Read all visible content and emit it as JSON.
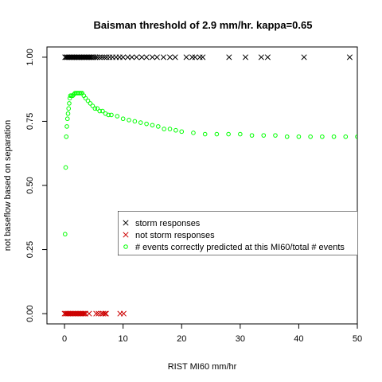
{
  "chart_data": {
    "type": "scatter",
    "title": "Baisman threshold of 2.9 mm/hr. kappa=0.65",
    "xlabel": "RIST MI60 mm/hr",
    "ylabel": "not baseflow based on separation",
    "xlim": [
      -3,
      50
    ],
    "ylim": [
      -0.04,
      1.04
    ],
    "x_ticks": [
      "0",
      "10",
      "20",
      "30",
      "40",
      "50"
    ],
    "y_ticks": [
      "0.00",
      "0.25",
      "0.50",
      "0.75",
      "1.00"
    ],
    "legend_position": "center-right",
    "grid": false,
    "series": [
      {
        "name": "storm responses",
        "marker": "x",
        "color": "#000000",
        "x": [
          0.1,
          0.3,
          0.5,
          0.7,
          0.9,
          1.1,
          1.3,
          1.5,
          1.7,
          1.9,
          2.1,
          2.3,
          2.5,
          2.7,
          2.9,
          3.1,
          3.3,
          3.5,
          3.7,
          3.9,
          4.1,
          4.3,
          4.5,
          4.7,
          5.0,
          5.3,
          5.6,
          6.0,
          6.4,
          6.8,
          7.2,
          7.7,
          8.2,
          8.8,
          9.4,
          10.0,
          10.8,
          11.5,
          12.3,
          13.2,
          14.0,
          15.0,
          15.8,
          16.9,
          18.0,
          18.9,
          20.8,
          21.8,
          22.3,
          23.1,
          23.6,
          28.1,
          30.9,
          33.6,
          34.7,
          40.9,
          48.7
        ],
        "y": 1.0
      },
      {
        "name": "not storm responses",
        "marker": "x",
        "color": "#cc0000",
        "x": [
          0.0,
          0.2,
          0.4,
          0.6,
          0.8,
          1.0,
          1.2,
          1.4,
          1.6,
          1.8,
          2.0,
          2.2,
          2.4,
          2.6,
          2.8,
          3.0,
          3.2,
          3.4,
          3.6,
          4.2,
          5.4,
          5.8,
          6.3,
          6.6,
          6.9,
          7.1,
          9.5,
          10.1
        ],
        "y": 0.0
      },
      {
        "name": "# events correctly predicted at this MI60/total # events",
        "marker": "o",
        "color": "#00ff00",
        "x": [
          0.1,
          0.2,
          0.3,
          0.4,
          0.5,
          0.6,
          0.7,
          0.8,
          0.9,
          1.0,
          1.2,
          1.4,
          1.6,
          1.8,
          2.0,
          2.2,
          2.4,
          2.6,
          2.8,
          3.0,
          3.3,
          3.6,
          4.0,
          4.4,
          4.8,
          5.2,
          5.6,
          6.0,
          6.5,
          7.0,
          7.5,
          8.0,
          9.0,
          10.0,
          11.0,
          12.0,
          13.0,
          14.0,
          15.0,
          16.0,
          17.0,
          18.0,
          19.0,
          20.0,
          22.0,
          24.0,
          26.0,
          28.0,
          30.0,
          32.0,
          34.0,
          36.0,
          38.0,
          40.0,
          42.0,
          44.0,
          46.0,
          48.0,
          50.0
        ],
        "y": [
          0.31,
          0.57,
          0.69,
          0.73,
          0.76,
          0.78,
          0.8,
          0.82,
          0.84,
          0.85,
          0.85,
          0.85,
          0.855,
          0.86,
          0.86,
          0.86,
          0.86,
          0.86,
          0.86,
          0.86,
          0.85,
          0.84,
          0.83,
          0.82,
          0.81,
          0.8,
          0.8,
          0.79,
          0.79,
          0.78,
          0.775,
          0.775,
          0.77,
          0.76,
          0.755,
          0.75,
          0.745,
          0.74,
          0.735,
          0.73,
          0.72,
          0.72,
          0.715,
          0.71,
          0.705,
          0.7,
          0.7,
          0.7,
          0.7,
          0.695,
          0.695,
          0.695,
          0.69,
          0.69,
          0.69,
          0.69,
          0.69,
          0.69,
          0.69
        ]
      }
    ]
  }
}
